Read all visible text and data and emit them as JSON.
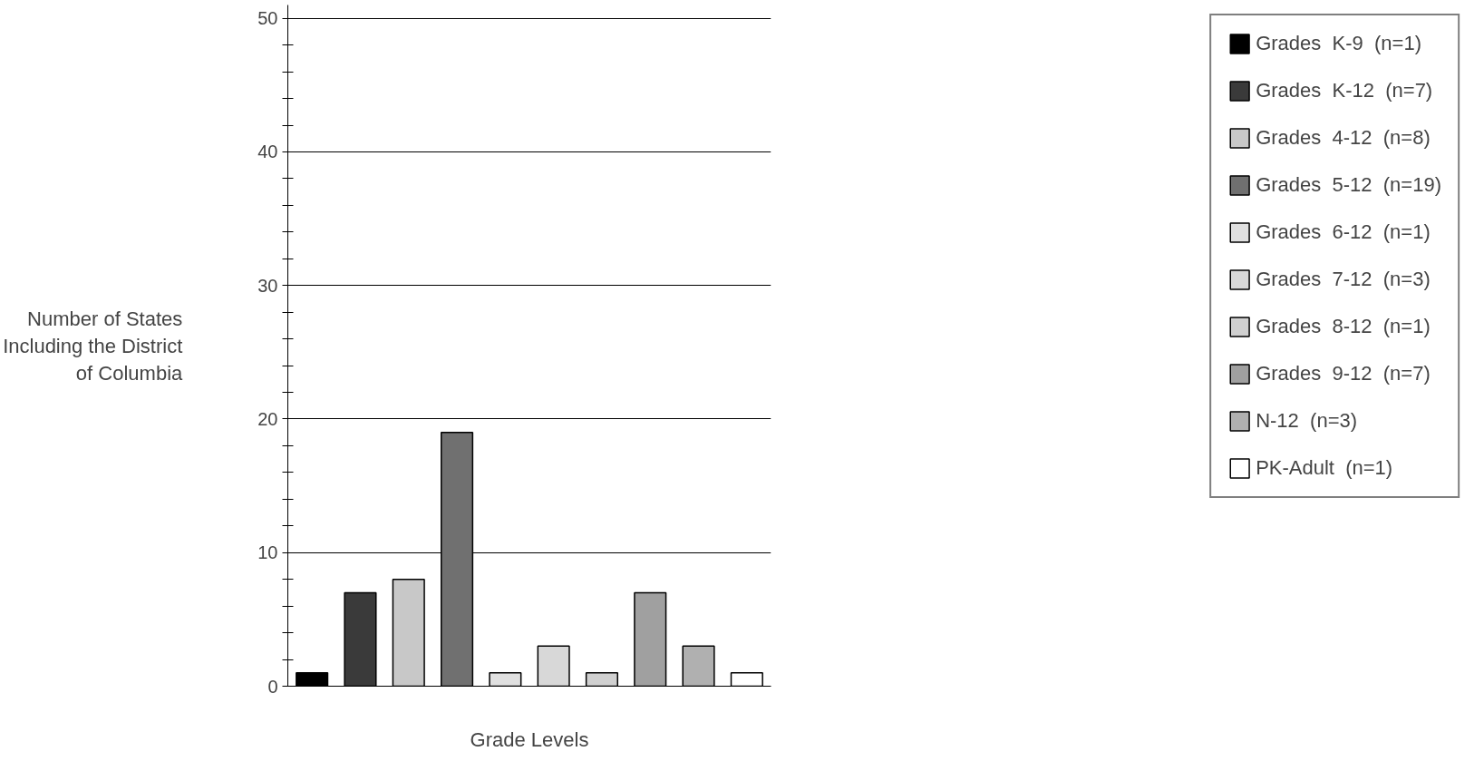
{
  "chart_data": {
    "type": "bar",
    "xlabel": "Grade Levels",
    "ylabel": "Number of States\nIncluding the District\nof Columbia",
    "categories": [
      null,
      null,
      null,
      null,
      null,
      null,
      null,
      null,
      null,
      null
    ],
    "series": [
      {
        "name": "Grades  K-9  (n=1)",
        "color": "#000000",
        "values": [
          1,
          null,
          null,
          null,
          null,
          null,
          null,
          null,
          null,
          null
        ]
      },
      {
        "name": "Grades  K-12  (n=7)",
        "color": "#3a3a3a",
        "values": [
          null,
          7,
          null,
          null,
          null,
          null,
          null,
          null,
          null,
          null
        ]
      },
      {
        "name": "Grades  4-12  (n=8)",
        "color": "#c8c8c8",
        "values": [
          null,
          null,
          8,
          null,
          null,
          null,
          null,
          null,
          null,
          null
        ]
      },
      {
        "name": "Grades  5-12  (n=19)",
        "color": "#707070",
        "values": [
          null,
          null,
          null,
          19,
          null,
          null,
          null,
          null,
          null,
          null
        ]
      },
      {
        "name": "Grades  6-12  (n=1)",
        "color": "#e0e0e0",
        "values": [
          null,
          null,
          null,
          null,
          1,
          null,
          null,
          null,
          null,
          null
        ]
      },
      {
        "name": "Grades  7-12  (n=3)",
        "color": "#d8d8d8",
        "values": [
          null,
          null,
          null,
          null,
          null,
          3,
          null,
          null,
          null,
          null
        ]
      },
      {
        "name": "Grades  8-12  (n=1)",
        "color": "#d0d0d0",
        "values": [
          null,
          null,
          null,
          null,
          null,
          null,
          1,
          null,
          null,
          null
        ]
      },
      {
        "name": "Grades  9-12  (n=7)",
        "color": "#a0a0a0",
        "values": [
          null,
          null,
          null,
          null,
          null,
          null,
          null,
          7,
          null,
          null
        ]
      },
      {
        "name": "N-12  (n=3)",
        "color": "#b0b0b0",
        "values": [
          null,
          null,
          null,
          null,
          null,
          null,
          null,
          null,
          3,
          null
        ]
      },
      {
        "name": "PK-Adult  (n=1)",
        "color": "#ffffff",
        "values": [
          null,
          null,
          null,
          null,
          null,
          null,
          null,
          null,
          null,
          1
        ]
      }
    ],
    "ylim": [
      0,
      51
    ],
    "yticks": [
      0,
      {
        "value": 2,
        "label": null
      },
      {
        "value": 4,
        "label": null
      },
      {
        "value": 6,
        "label": null
      },
      {
        "value": 8,
        "label": null
      },
      10,
      {
        "value": 12,
        "label": null
      },
      {
        "value": 14,
        "label": null
      },
      {
        "value": 16,
        "label": null
      },
      {
        "value": 18,
        "label": null
      },
      20,
      {
        "value": 22,
        "label": null
      },
      {
        "value": 24,
        "label": null
      },
      {
        "value": 26,
        "label": null
      },
      {
        "value": 28,
        "label": null
      },
      30,
      {
        "value": 32,
        "label": null
      },
      {
        "value": 34,
        "label": null
      },
      {
        "value": 36,
        "label": null
      },
      {
        "value": 38,
        "label": null
      },
      40,
      {
        "value": 42,
        "label": null
      },
      {
        "value": 44,
        "label": null
      },
      {
        "value": 46,
        "label": null
      },
      {
        "value": 48,
        "label": null
      },
      50
    ],
    "grid": "y",
    "legend": "right",
    "tick_labels": "y"
  }
}
